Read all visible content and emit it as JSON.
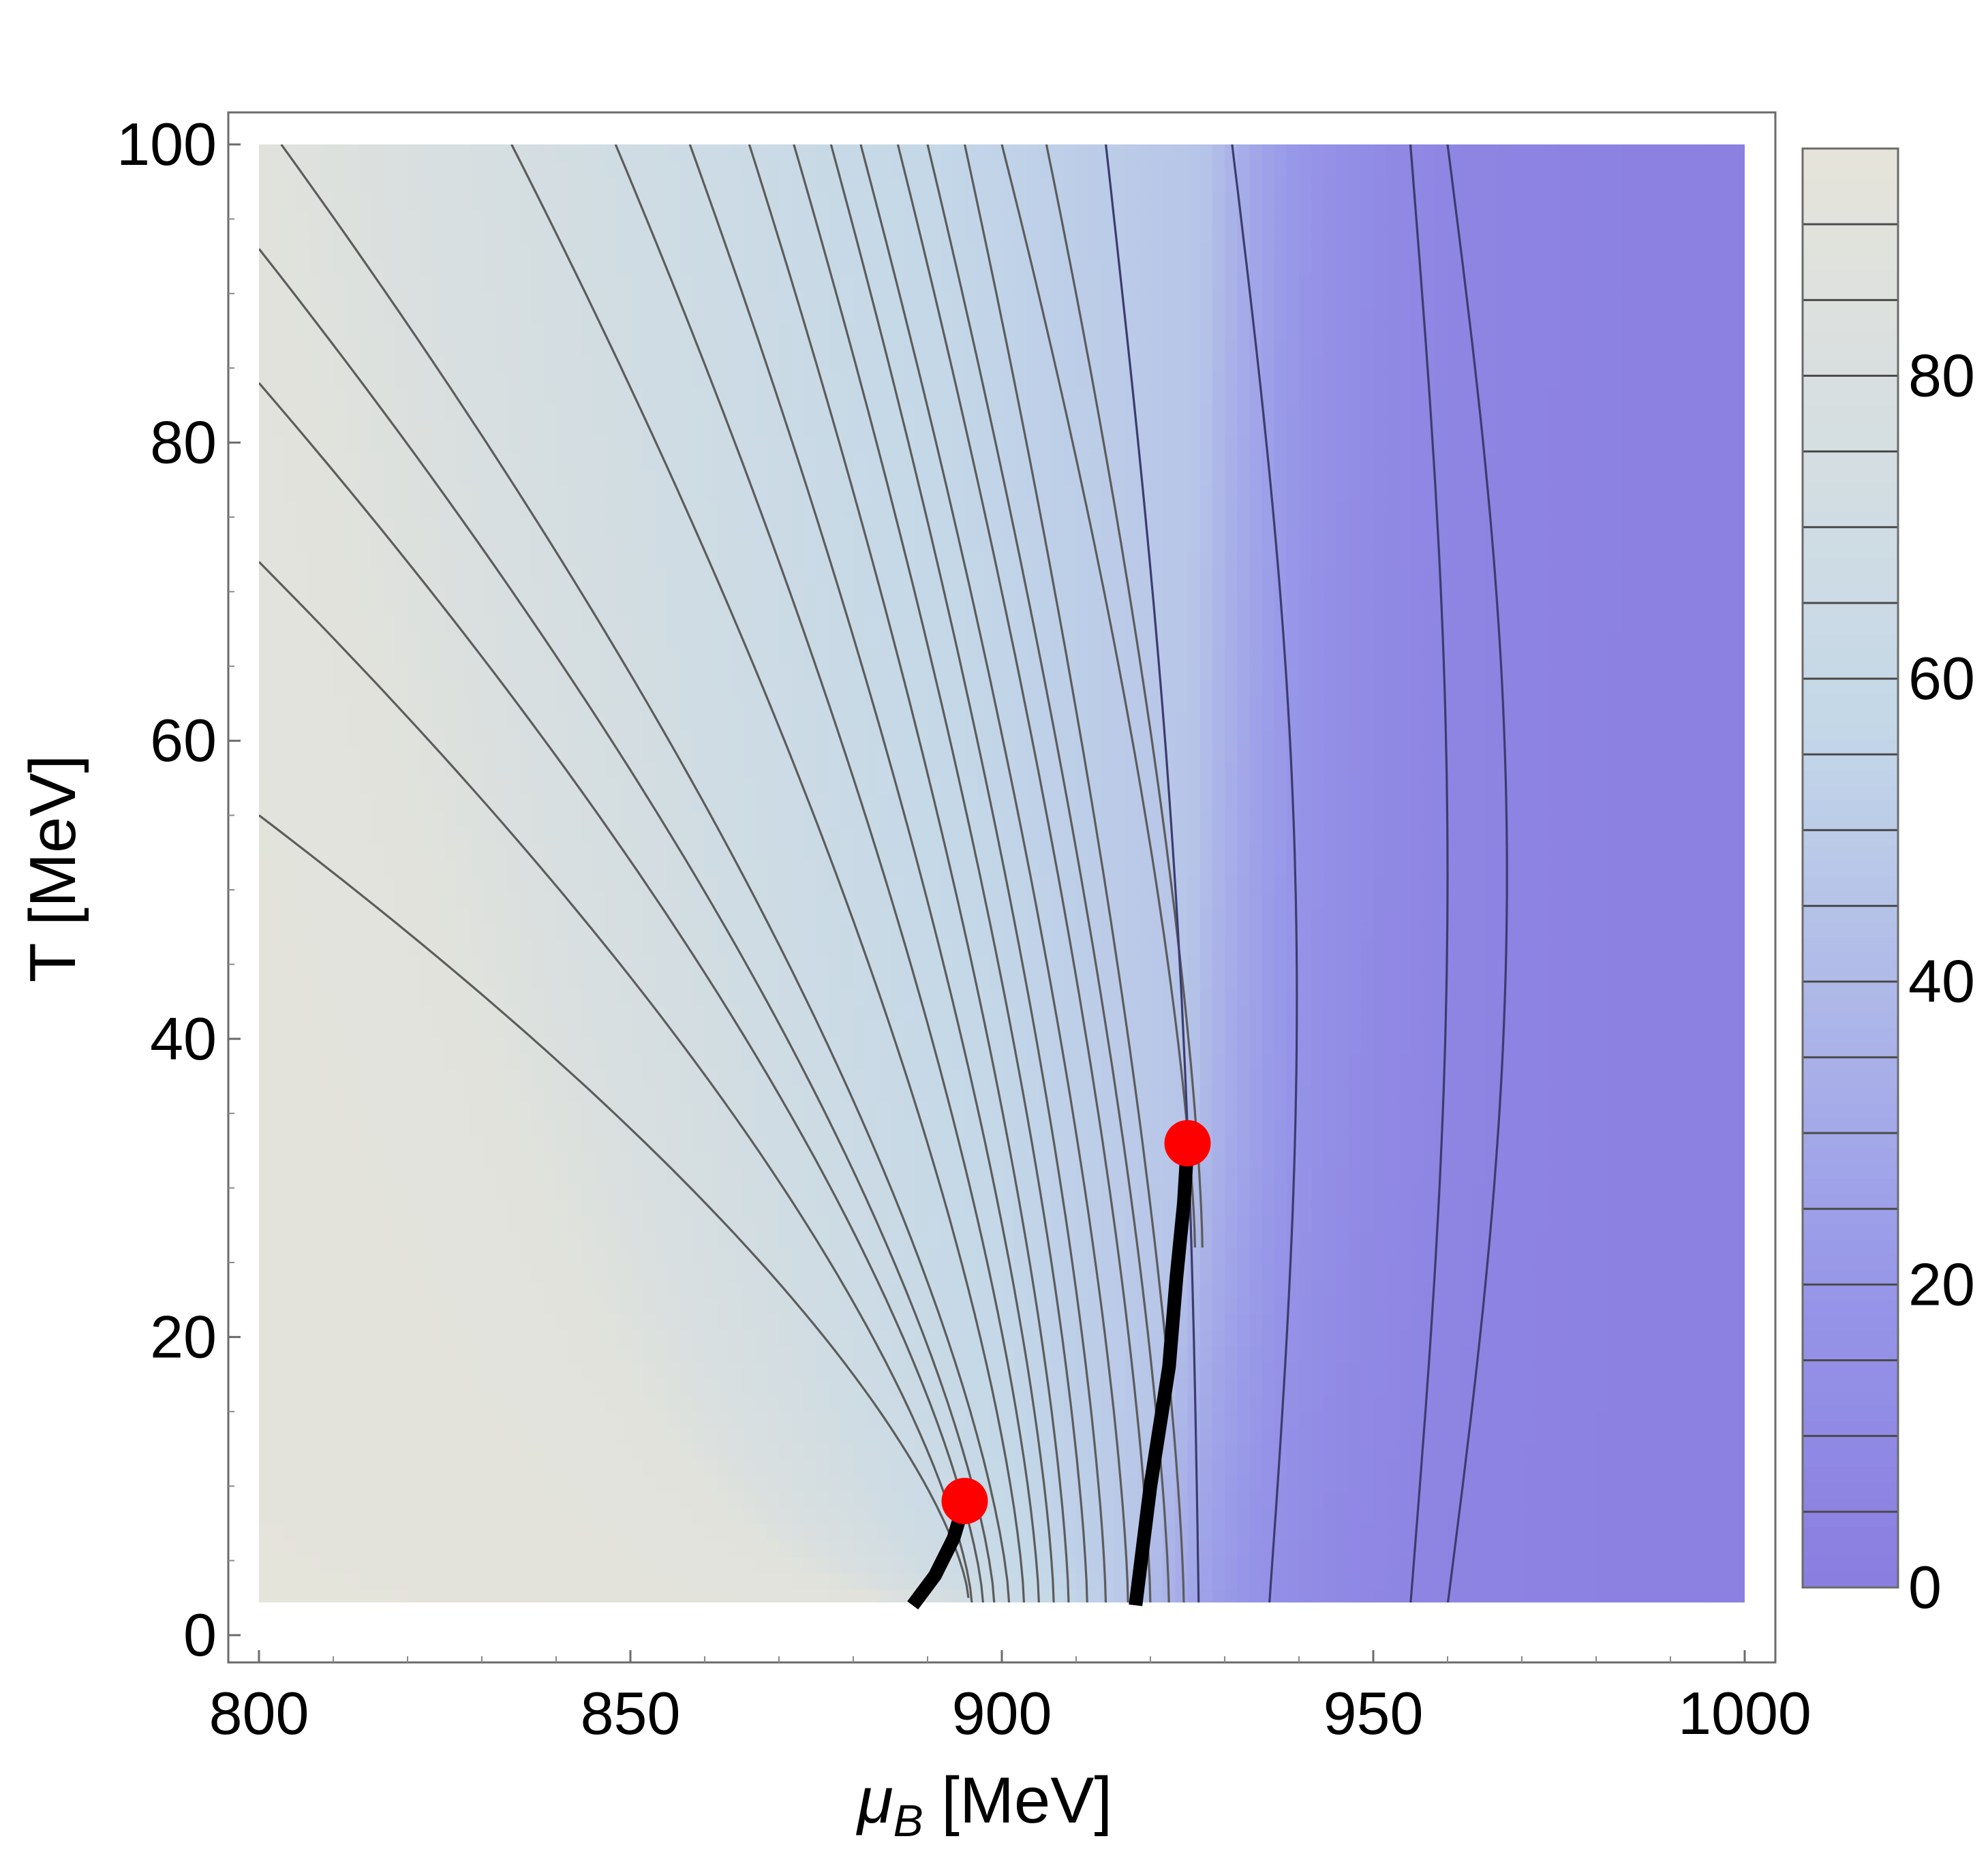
{
  "chart_data": {
    "type": "heatmap",
    "xlabel_symbol": "μ",
    "xlabel_sub": "B",
    "xlabel_unit": " [MeV]",
    "ylabel": "T [MeV]",
    "xlim": [
      800,
      1000
    ],
    "ylim": [
      0,
      100
    ],
    "data_domain": {
      "x": [
        800,
        1000
      ],
      "y": [
        2,
        100
      ]
    },
    "x_ticks": [
      800,
      850,
      900,
      950,
      1000
    ],
    "y_ticks": [
      0,
      20,
      40,
      60,
      80,
      100
    ],
    "colorbar": {
      "range": [
        0,
        95
      ],
      "ticks": [
        0,
        20,
        40,
        60,
        80
      ],
      "contour_levels": [
        5,
        10,
        15,
        20,
        25,
        30,
        35,
        40,
        45,
        50,
        55,
        60,
        65,
        70,
        75,
        80,
        85,
        90
      ],
      "low_color": "#8a7de0",
      "high_color": "#e6e4da"
    },
    "critical_points": [
      {
        "x": 895,
        "y": 9
      },
      {
        "x": 925,
        "y": 33
      }
    ],
    "first_order_lines": [
      [
        [
          888,
          2
        ],
        [
          891,
          4
        ],
        [
          893.5,
          6.5
        ],
        [
          895,
          9
        ]
      ],
      [
        [
          918,
          2
        ],
        [
          920,
          10
        ],
        [
          922.5,
          18
        ],
        [
          923.5,
          24
        ],
        [
          924.5,
          29
        ],
        [
          925,
          33
        ]
      ]
    ],
    "grid": false,
    "legend": "none"
  }
}
